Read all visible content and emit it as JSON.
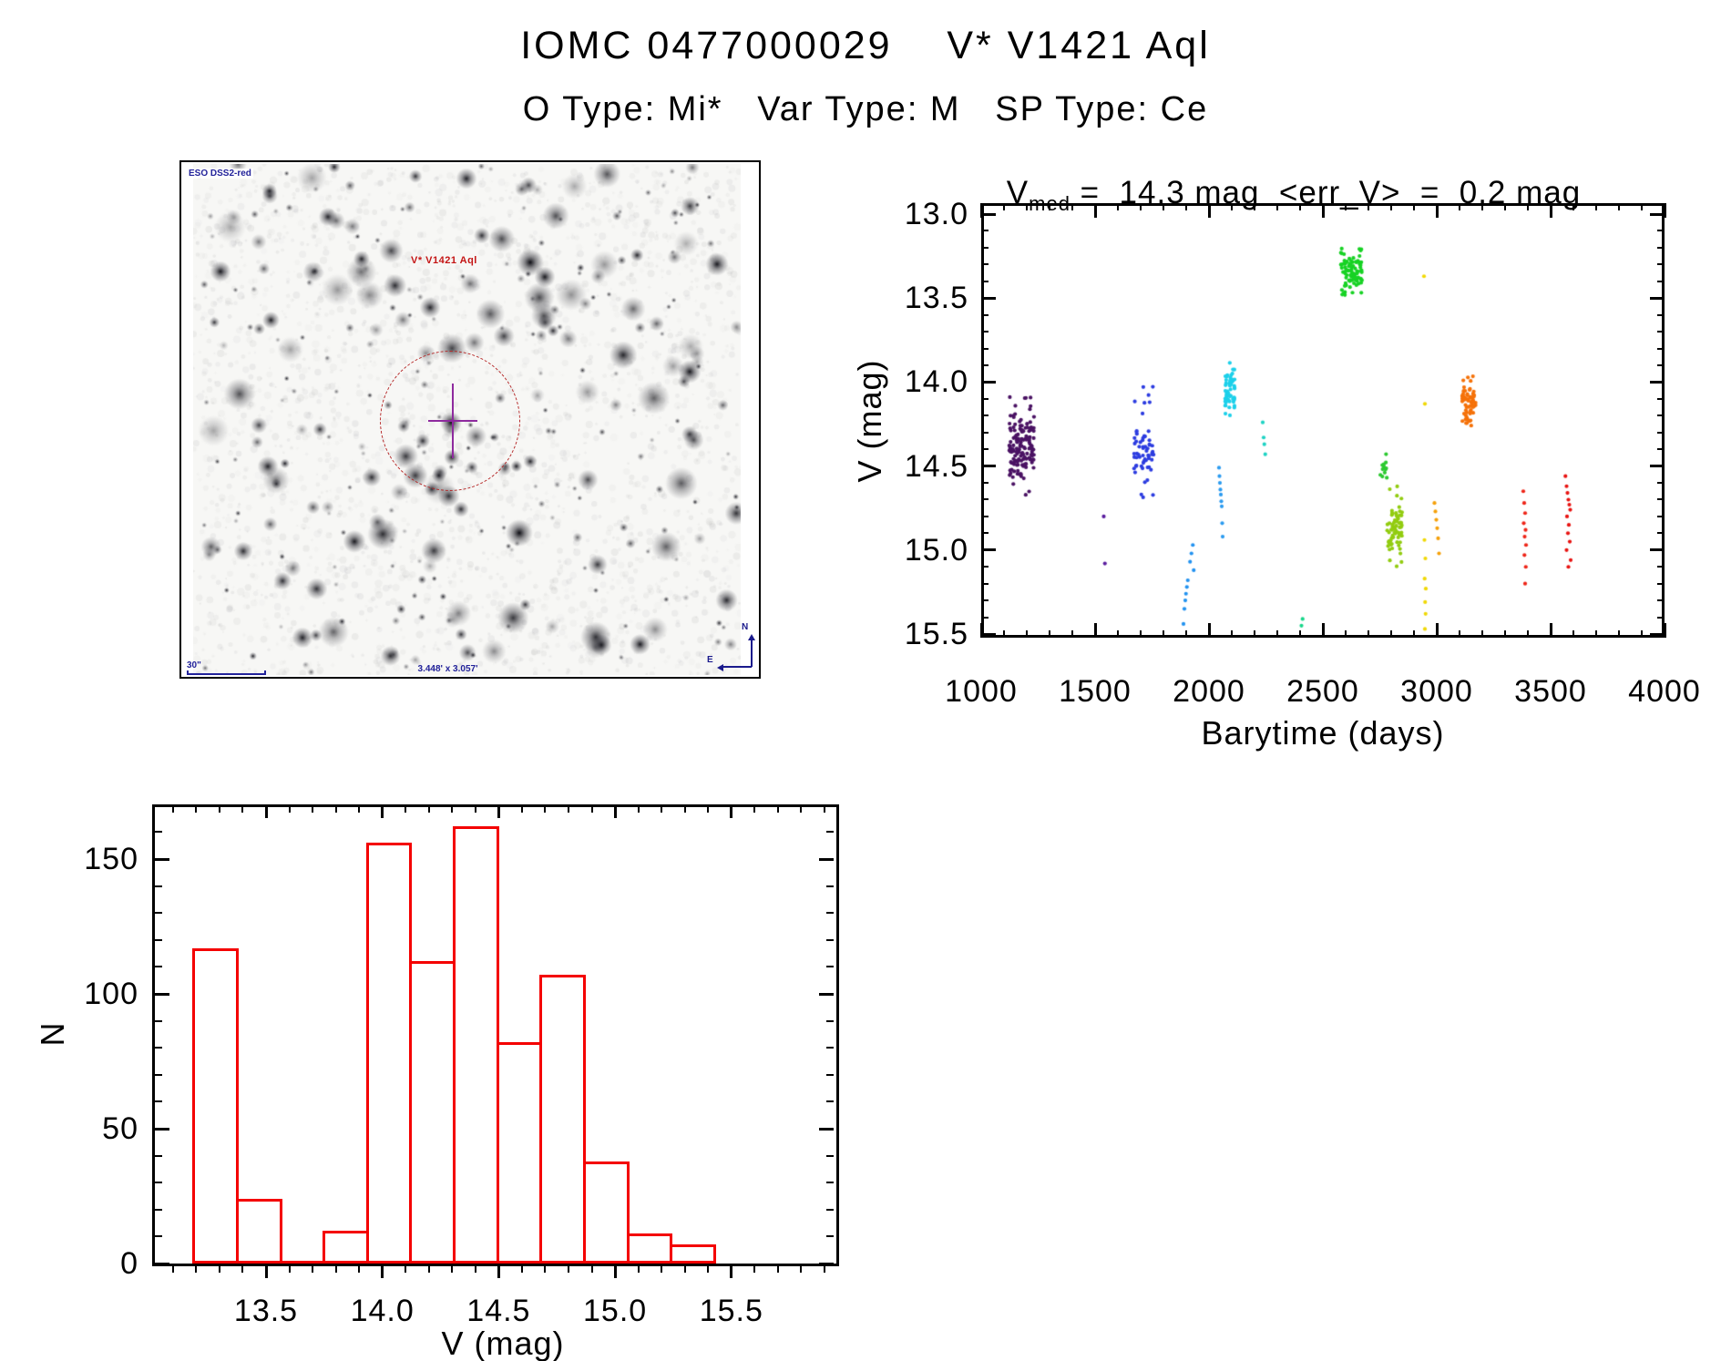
{
  "header": {
    "title": "IOMC 0477000029    V* V1421 Aql",
    "subtitle": "O Type: Mi*   Var Type: M   SP Type: Ce"
  },
  "finder": {
    "survey_label": "ESO DSS2-red",
    "target_label": "V* V1421 Aql",
    "scale_label": "30\"",
    "fov_label": "3.448' x 3.057'",
    "compass": {
      "north": "N",
      "east": "E"
    }
  },
  "chart_data": [
    {
      "type": "scatter",
      "title": {
        "base": "V",
        "sub": "med",
        "rest": " =  14.3 mag  <err_V>  =  0.2 mag"
      },
      "xlabel": "Barytime (days)",
      "ylabel": "V (mag)",
      "xlim": [
        1000,
        4000
      ],
      "ylim": [
        15.5,
        13.0
      ],
      "y_axis_inverted": true,
      "grid": false,
      "x_ticks": [
        1000,
        1500,
        2000,
        2500,
        3000,
        3500,
        4000
      ],
      "y_ticks": [
        13.0,
        13.5,
        14.0,
        14.5,
        15.0,
        15.5
      ],
      "x_minor_step": 100,
      "y_minor_step": 0.1,
      "marker": "dot",
      "series": [
        {
          "kind": "cluster",
          "color": "#4a1263",
          "t": [
            1124,
            1232
          ],
          "v": [
            14.05,
            14.68
          ],
          "v_dense": [
            14.18,
            14.58
          ],
          "n": 150,
          "cols": 6
        },
        {
          "kind": "points",
          "color": "#5a1d9e",
          "pts": [
            [
              1538,
              14.8
            ],
            [
              1543,
              15.08
            ]
          ]
        },
        {
          "kind": "cluster",
          "color": "#2c3ce0",
          "t": [
            1672,
            1756
          ],
          "v": [
            14.0,
            14.76
          ],
          "v_dense": [
            14.28,
            14.62
          ],
          "n": 62,
          "cols": 4
        },
        {
          "kind": "points",
          "color": "#2292f0",
          "pts": [
            [
              1888,
              15.44
            ],
            [
              1892,
              15.35
            ],
            [
              1896,
              15.3
            ],
            [
              1899,
              15.26
            ],
            [
              1903,
              15.22
            ],
            [
              1907,
              15.18
            ],
            [
              1917,
              15.07
            ],
            [
              1923,
              15.02
            ],
            [
              1929,
              14.97
            ],
            [
              1933,
              15.12
            ]
          ]
        },
        {
          "kind": "points",
          "color": "#2b9bf0",
          "pts": [
            [
              2044,
              14.51
            ],
            [
              2046,
              14.56
            ],
            [
              2048,
              14.6
            ],
            [
              2050,
              14.64
            ],
            [
              2052,
              14.67
            ],
            [
              2054,
              14.71
            ],
            [
              2056,
              14.74
            ],
            [
              2058,
              14.84
            ],
            [
              2060,
              14.92
            ]
          ]
        },
        {
          "kind": "cluster",
          "color": "#1cd0ea",
          "t": [
            2072,
            2112
          ],
          "v": [
            13.88,
            14.22
          ],
          "v_dense": [
            13.94,
            14.18
          ],
          "n": 60,
          "cols": 2
        },
        {
          "kind": "points",
          "color": "#1fd3c4",
          "pts": [
            [
              2236,
              14.24
            ],
            [
              2240,
              14.33
            ],
            [
              2243,
              14.37
            ],
            [
              2247,
              14.43
            ]
          ]
        },
        {
          "kind": "points",
          "color": "#17d689",
          "pts": [
            [
              2406,
              15.45
            ],
            [
              2411,
              15.41
            ]
          ]
        },
        {
          "kind": "cluster",
          "color": "#17d224",
          "t": [
            2580,
            2672
          ],
          "v": [
            13.19,
            13.5
          ],
          "v_dense": [
            13.25,
            13.44
          ],
          "n": 88,
          "cols": 4
        },
        {
          "kind": "cluster",
          "color": "#2cc930",
          "t": [
            2752,
            2780
          ],
          "v": [
            14.42,
            14.62
          ],
          "v_dense": [
            14.44,
            14.58
          ],
          "n": 13,
          "cols": 2
        },
        {
          "kind": "cluster",
          "color": "#92cc10",
          "t": [
            2782,
            2848
          ],
          "v": [
            14.6,
            15.1
          ],
          "v_dense": [
            14.72,
            15.0
          ],
          "n": 72,
          "cols": 3
        },
        {
          "kind": "points",
          "color": "#f2da04",
          "pts": [
            [
              2944,
              13.37
            ]
          ]
        },
        {
          "kind": "points",
          "color": "#f0d806",
          "pts": [
            [
              2948,
              14.13
            ],
            [
              2946,
              14.94
            ],
            [
              2950,
              15.05
            ],
            [
              2947,
              15.17
            ],
            [
              2952,
              15.23
            ],
            [
              2949,
              15.31
            ],
            [
              2951,
              15.38
            ],
            [
              2948,
              15.47
            ]
          ]
        },
        {
          "kind": "points",
          "color": "#f5a00a",
          "pts": [
            [
              2990,
              14.72
            ],
            [
              2994,
              14.77
            ],
            [
              2998,
              14.82
            ],
            [
              3002,
              14.87
            ],
            [
              3006,
              14.93
            ],
            [
              3010,
              15.02
            ]
          ]
        },
        {
          "kind": "cluster",
          "color": "#f57108",
          "t": [
            3112,
            3172
          ],
          "v": [
            13.95,
            14.3
          ],
          "v_dense": [
            14.0,
            14.23
          ],
          "n": 68,
          "cols": 3
        },
        {
          "kind": "points",
          "color": "#ee2417",
          "pts": [
            [
              3380,
              14.65
            ],
            [
              3384,
              14.72
            ],
            [
              3388,
              14.78
            ],
            [
              3382,
              14.84
            ],
            [
              3390,
              14.88
            ],
            [
              3386,
              14.92
            ],
            [
              3392,
              14.97
            ],
            [
              3385,
              15.03
            ],
            [
              3391,
              15.1
            ],
            [
              3388,
              15.2
            ]
          ]
        },
        {
          "kind": "points",
          "color": "#e81210",
          "pts": [
            [
              3565,
              14.56
            ],
            [
              3570,
              14.62
            ],
            [
              3574,
              14.66
            ],
            [
              3578,
              14.7
            ],
            [
              3582,
              14.73
            ],
            [
              3586,
              14.76
            ],
            [
              3572,
              14.8
            ],
            [
              3580,
              14.85
            ],
            [
              3576,
              14.9
            ],
            [
              3584,
              14.95
            ],
            [
              3570,
              15.0
            ],
            [
              3588,
              15.06
            ],
            [
              3578,
              15.1
            ]
          ]
        }
      ]
    },
    {
      "type": "bar",
      "xlabel": "V (mag)",
      "ylabel": "N",
      "xlim": [
        13.01,
        15.96
      ],
      "ylim": [
        0,
        170
      ],
      "grid": false,
      "x_ticks": [
        13.5,
        14.0,
        14.5,
        15.0,
        15.5
      ],
      "y_ticks": [
        0,
        50,
        100,
        150
      ],
      "x_minor_step": 0.1,
      "y_minor_step": 10,
      "bar_color": "#f40000",
      "bin_start": 13.19,
      "bin_width": 0.1865,
      "counts": [
        117,
        24,
        0,
        12,
        156,
        112,
        162,
        82,
        107,
        38,
        11,
        7
      ]
    }
  ]
}
